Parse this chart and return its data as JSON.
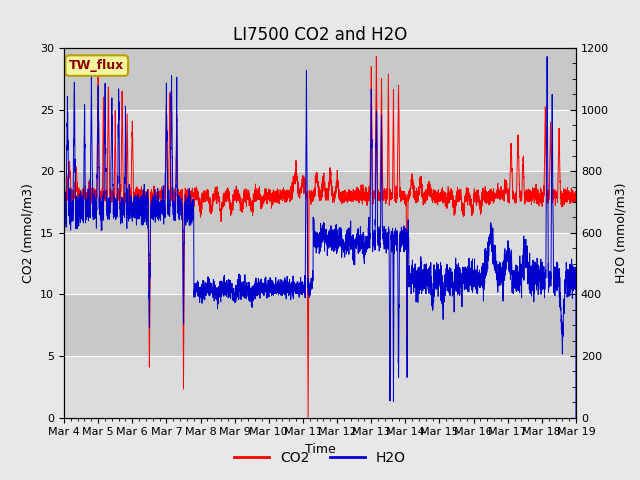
{
  "title": "LI7500 CO2 and H2O",
  "xlabel": "Time",
  "ylabel_left": "CO2 (mmol/m3)",
  "ylabel_right": "H2O (mmol/m3)",
  "xlim_days": [
    0,
    15
  ],
  "ylim_left": [
    0,
    30
  ],
  "ylim_right": [
    0,
    1200
  ],
  "x_tick_labels": [
    "Mar 4",
    "Mar 5",
    "Mar 6",
    "Mar 7",
    "Mar 8",
    "Mar 9",
    "Mar 10",
    "Mar 11",
    "Mar 12",
    "Mar 13",
    "Mar 14",
    "Mar 15",
    "Mar 16",
    "Mar 17",
    "Mar 18",
    "Mar 19"
  ],
  "x_tick_positions": [
    0,
    1,
    2,
    3,
    4,
    5,
    6,
    7,
    8,
    9,
    10,
    11,
    12,
    13,
    14,
    15
  ],
  "co2_color": "#FF0000",
  "h2o_color": "#0000CC",
  "fig_bg_color": "#E8E8E8",
  "plot_bg_color": "#D8D8D8",
  "grid_color": "#FFFFFF",
  "legend_label_co2": "CO2",
  "legend_label_h2o": "H2O",
  "site_label": "TW_flux",
  "title_fontsize": 12,
  "axis_fontsize": 9,
  "tick_fontsize": 8,
  "legend_fontsize": 10
}
